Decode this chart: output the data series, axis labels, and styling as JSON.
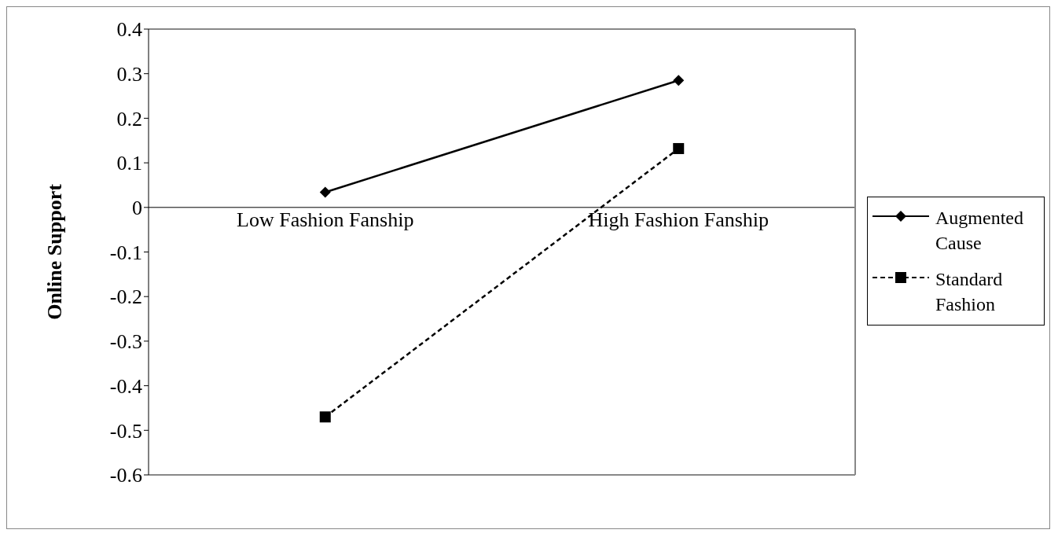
{
  "chart_data": {
    "type": "line",
    "ylabel": "Online Support",
    "categories": [
      "Low Fashion Fanship",
      "High Fashion Fanship"
    ],
    "series": [
      {
        "name": "Augmented Cause",
        "color": "#000000",
        "values": [
          0.034,
          0.285
        ],
        "marker": "diamond",
        "line_style": "solid"
      },
      {
        "name": "Standard Fashion",
        "color": "#000000",
        "values": [
          -0.47,
          0.132
        ],
        "marker": "square",
        "line_style": "dashed"
      }
    ],
    "ylim": [
      -0.6,
      0.4
    ],
    "yticks": [
      -0.6,
      -0.5,
      -0.4,
      -0.3,
      -0.2,
      -0.1,
      0,
      0.1,
      0.2,
      0.3,
      0.4
    ],
    "legend": "right"
  }
}
